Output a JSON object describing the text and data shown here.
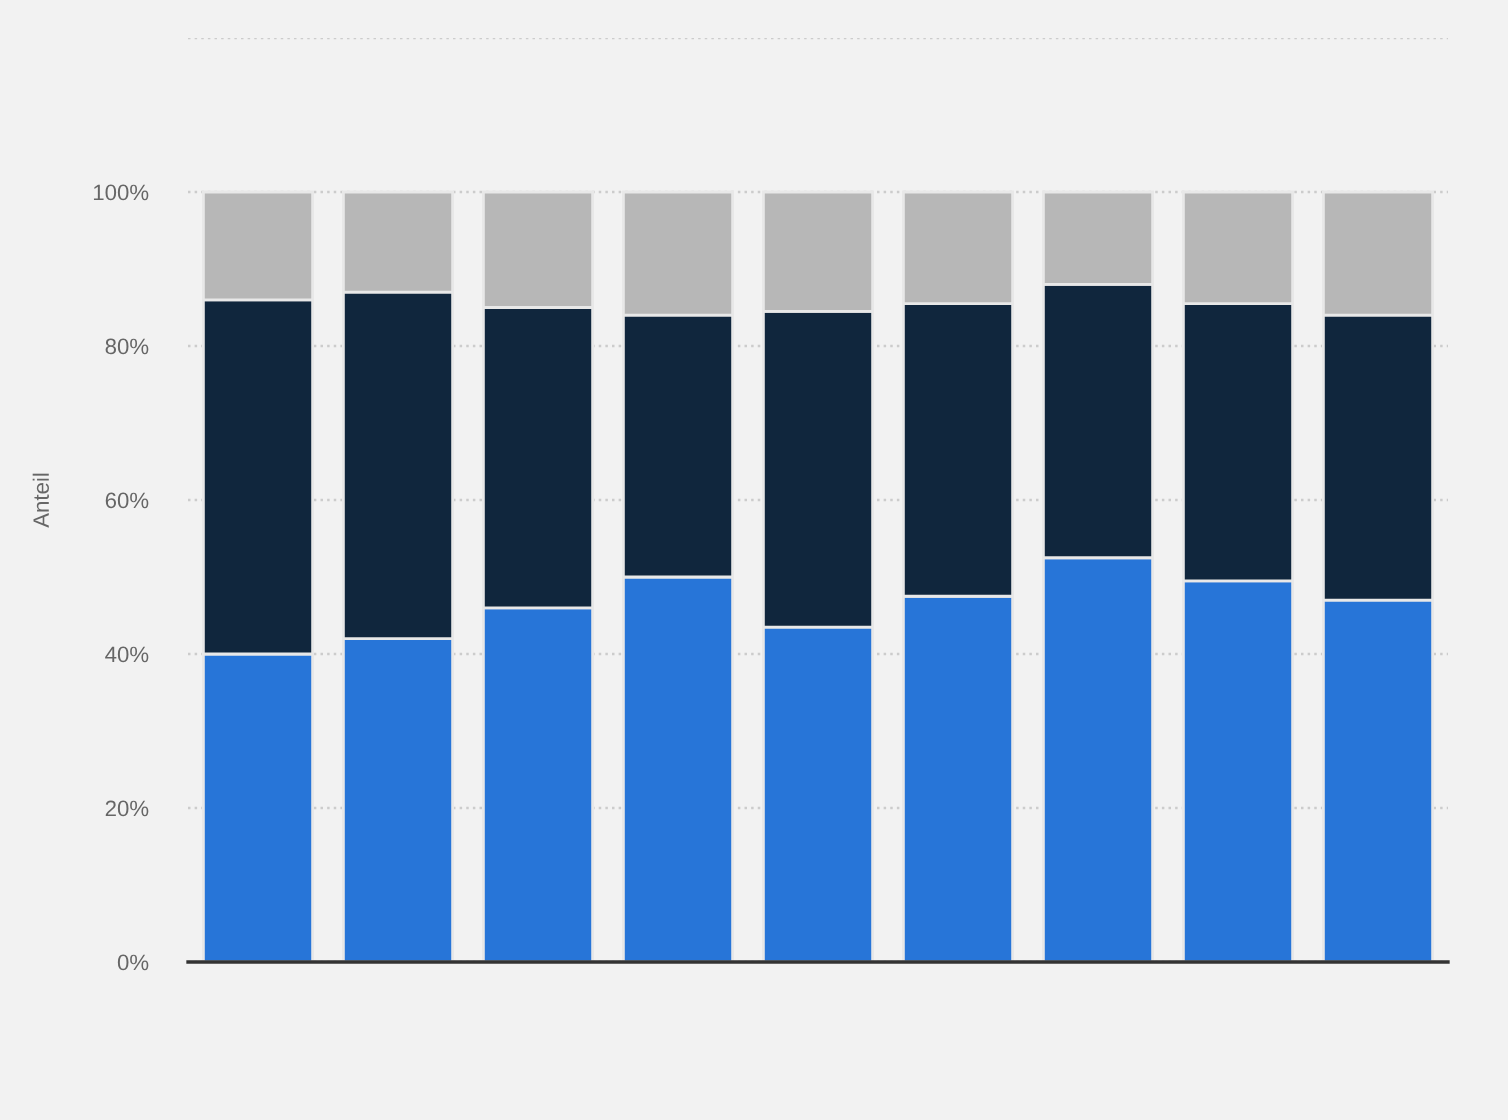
{
  "chart_data": {
    "type": "bar",
    "stacked": true,
    "ylabel": "Anteil",
    "categories": [
      null,
      null,
      null,
      null,
      null,
      null,
      null,
      null,
      null
    ],
    "series": [
      {
        "color": "#2775d8",
        "values": [
          40,
          42,
          46,
          50,
          43.5,
          47.5,
          52.5,
          49.5,
          47
        ]
      },
      {
        "color": "#10263d",
        "values": [
          46,
          45,
          39,
          34,
          41,
          38,
          35.5,
          36,
          37
        ]
      },
      {
        "color": "#b7b7b7",
        "values": [
          14,
          13,
          15,
          16,
          15.5,
          14.5,
          12,
          14.5,
          16
        ]
      }
    ],
    "ylim": [
      0,
      120
    ],
    "yticks": [
      {
        "value": 0,
        "label": "0%"
      },
      {
        "value": 20,
        "label": "20%"
      },
      {
        "value": 40,
        "label": "40%"
      },
      {
        "value": 60,
        "label": "60%"
      },
      {
        "value": 80,
        "label": "80%"
      },
      {
        "value": 100,
        "label": "100%"
      },
      {
        "value": 120,
        "label": null
      }
    ],
    "grid": "y"
  }
}
